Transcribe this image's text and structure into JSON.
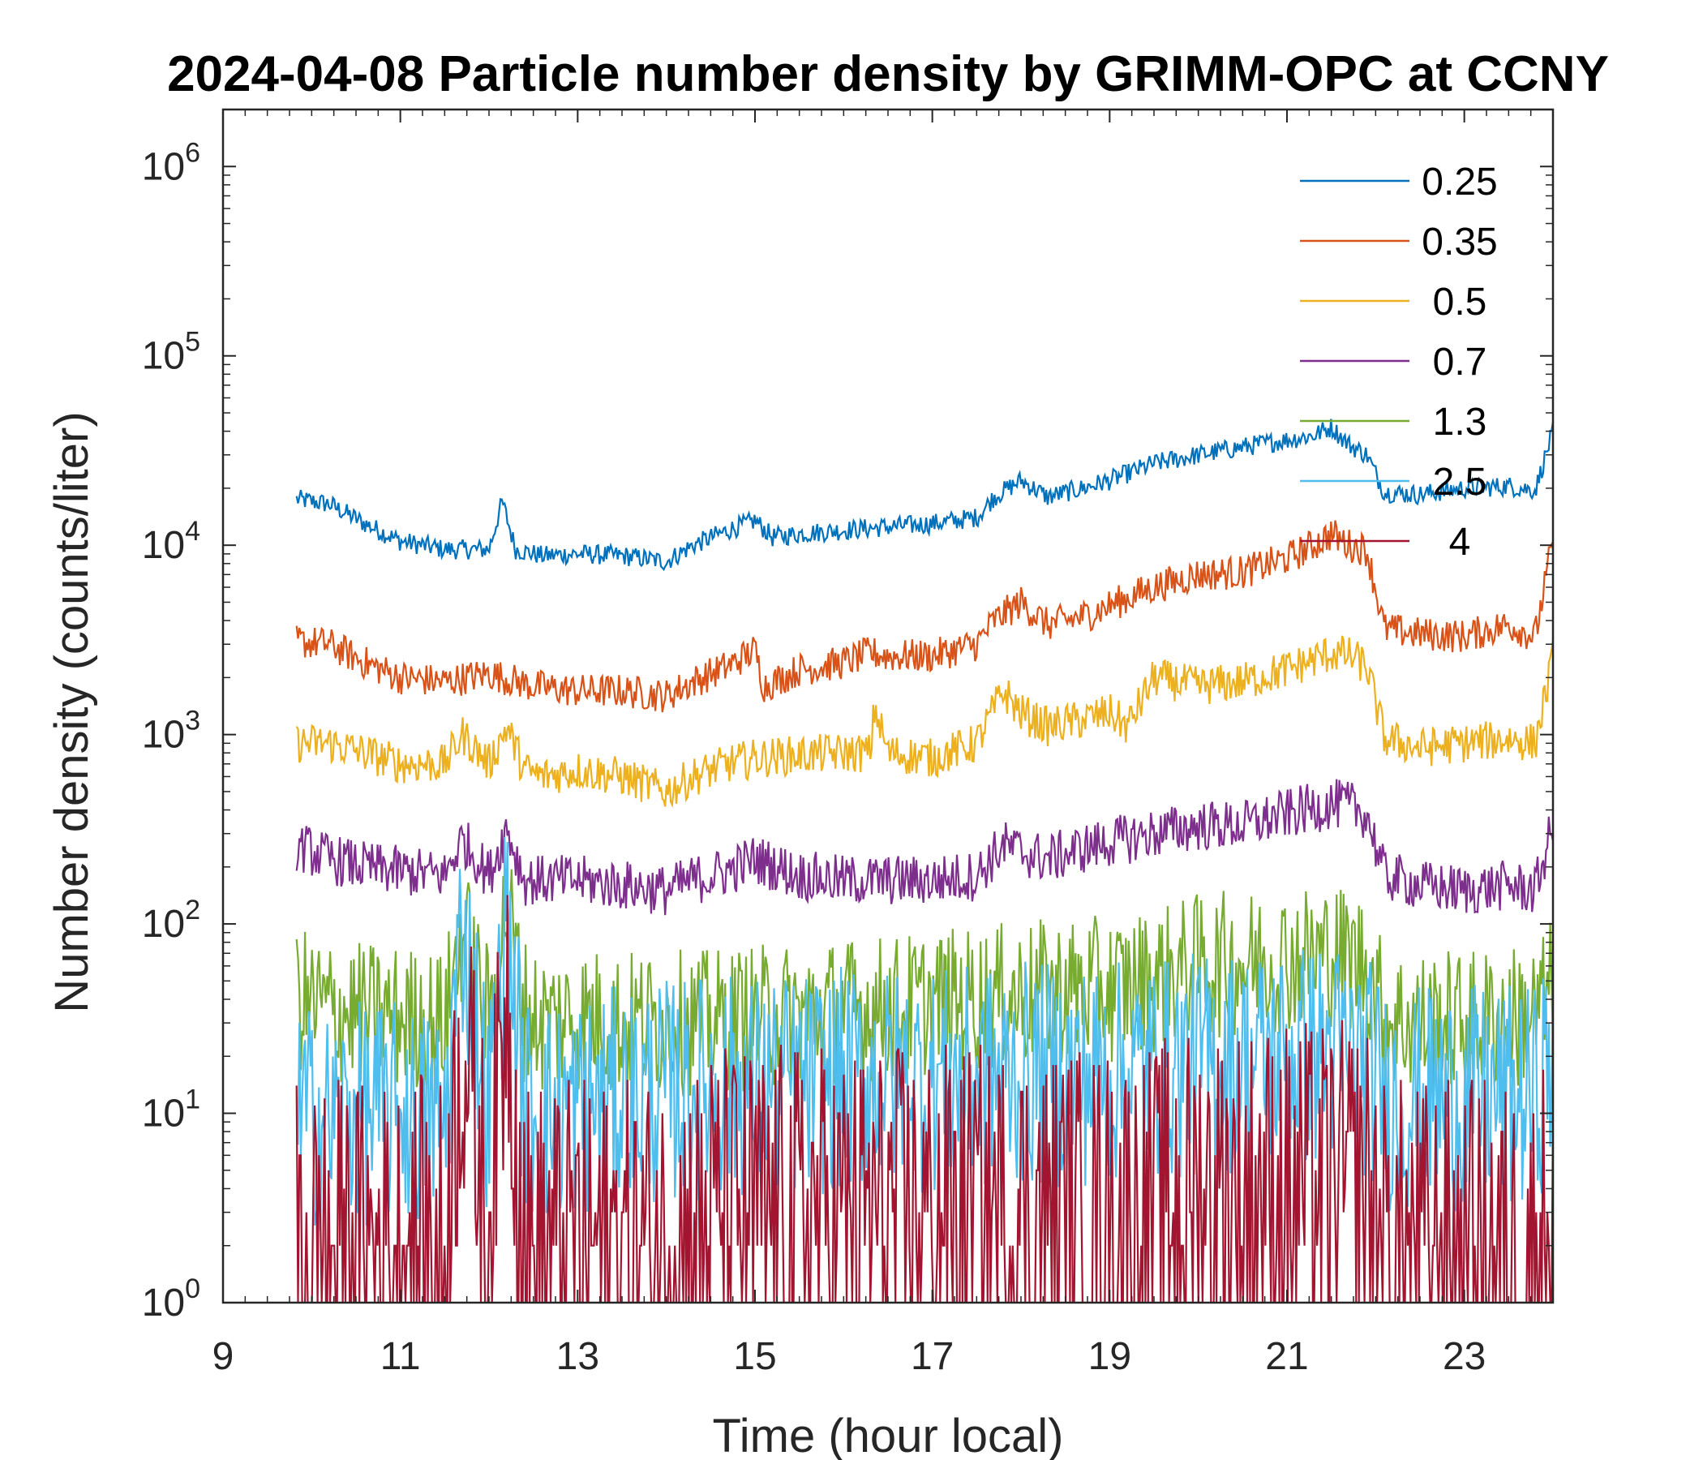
{
  "chart_data": {
    "type": "line",
    "title": "2024-04-08 Particle number density by GRIMM-OPC at CCNY",
    "xlabel": "Time (hour local)",
    "ylabel": "Number density (counts/liter)",
    "xlim": [
      9,
      24
    ],
    "ylim": [
      1,
      2000000
    ],
    "yscale": "log",
    "x_ticks": [
      9,
      11,
      13,
      15,
      17,
      19,
      21,
      23
    ],
    "x_tick_labels": [
      "9",
      "11",
      "13",
      "15",
      "17",
      "19",
      "21",
      "23"
    ],
    "y_ticks": [
      1,
      10,
      100,
      1000,
      10000,
      100000,
      1000000
    ],
    "y_tick_labels": [
      {
        "base": "10",
        "exp": "0"
      },
      {
        "base": "10",
        "exp": "1"
      },
      {
        "base": "10",
        "exp": "2"
      },
      {
        "base": "10",
        "exp": "3"
      },
      {
        "base": "10",
        "exp": "4"
      },
      {
        "base": "10",
        "exp": "5"
      },
      {
        "base": "10",
        "exp": "6"
      }
    ],
    "grid": false,
    "legend_position": "top-right",
    "series": [
      {
        "name": "0.25",
        "color": "#0072BD",
        "x": [
          9.83,
          10.2,
          10.6,
          11.0,
          11.5,
          12.0,
          12.15,
          12.3,
          12.6,
          13.0,
          13.5,
          14.0,
          14.3,
          14.7,
          15.0,
          15.2,
          15.5,
          16.0,
          16.5,
          17.0,
          17.5,
          17.7,
          18.0,
          18.3,
          18.7,
          19.0,
          19.5,
          20.0,
          20.5,
          21.0,
          21.3,
          21.5,
          21.7,
          21.9,
          22.1,
          22.5,
          23.0,
          23.5,
          23.8,
          24.0
        ],
        "values": [
          17500,
          16500,
          13000,
          10500,
          9500,
          9500,
          17000,
          9500,
          8800,
          9000,
          8800,
          8200,
          10000,
          12000,
          13500,
          11000,
          11500,
          12000,
          12500,
          13000,
          14000,
          18000,
          22000,
          18000,
          20000,
          22000,
          27000,
          30000,
          33000,
          36000,
          38000,
          42000,
          34000,
          30000,
          19000,
          18500,
          20000,
          20500,
          19500,
          40000
        ]
      },
      {
        "name": "0.35",
        "color": "#D95319",
        "x": [
          9.83,
          10.2,
          10.6,
          11.0,
          11.5,
          12.0,
          12.5,
          13.0,
          13.5,
          14.0,
          14.3,
          14.7,
          15.0,
          15.1,
          15.5,
          16.0,
          16.3,
          16.5,
          17.0,
          17.5,
          17.7,
          18.0,
          18.3,
          18.7,
          19.0,
          19.5,
          20.0,
          20.5,
          21.0,
          21.3,
          21.5,
          21.7,
          21.9,
          22.1,
          22.5,
          23.0,
          23.5,
          23.8,
          24.0
        ],
        "values": [
          3100,
          3000,
          2400,
          2000,
          1900,
          2100,
          1800,
          1700,
          1700,
          1600,
          1900,
          2300,
          2800,
          1800,
          2200,
          2400,
          2700,
          2600,
          2600,
          3000,
          4000,
          5000,
          3800,
          4200,
          4800,
          6000,
          7000,
          7200,
          8500,
          10000,
          11500,
          10000,
          9500,
          3600,
          3400,
          3300,
          3800,
          3300,
          10500
        ]
      },
      {
        "name": "0.5",
        "color": "#EDB120",
        "x": [
          9.83,
          10.2,
          10.6,
          11.0,
          11.5,
          11.7,
          12.0,
          12.2,
          12.4,
          12.6,
          13.0,
          13.5,
          14.0,
          14.3,
          14.7,
          15.0,
          15.5,
          16.0,
          16.3,
          16.35,
          16.5,
          17.0,
          17.5,
          17.8,
          18.0,
          18.3,
          18.7,
          19.0,
          19.2,
          19.5,
          20.0,
          20.5,
          21.0,
          21.5,
          21.7,
          21.9,
          22.1,
          22.5,
          23.0,
          23.5,
          23.8,
          24.0
        ],
        "values": [
          900,
          900,
          800,
          700,
          700,
          1000,
          700,
          1100,
          650,
          600,
          650,
          600,
          500,
          600,
          700,
          750,
          780,
          800,
          800,
          1400,
          800,
          750,
          900,
          1700,
          1300,
          1100,
          1200,
          1300,
          1100,
          2000,
          1800,
          1900,
          2200,
          2700,
          2600,
          2300,
          950,
          850,
          900,
          950,
          900,
          2500
        ]
      },
      {
        "name": "0.7",
        "color": "#7E2F8E",
        "x": [
          9.83,
          10.2,
          10.6,
          11.0,
          11.5,
          11.7,
          12.0,
          12.2,
          12.4,
          12.6,
          13.0,
          13.5,
          14.0,
          14.3,
          14.7,
          15.0,
          15.5,
          16.0,
          16.5,
          17.0,
          17.5,
          17.8,
          18.0,
          18.3,
          18.7,
          19.0,
          19.5,
          20.0,
          20.5,
          21.0,
          21.5,
          21.7,
          21.9,
          22.1,
          22.5,
          23.0,
          23.5,
          23.8,
          24.0
        ],
        "values": [
          260,
          220,
          200,
          190,
          180,
          280,
          180,
          320,
          170,
          170,
          170,
          160,
          150,
          170,
          190,
          220,
          180,
          170,
          170,
          170,
          180,
          260,
          240,
          220,
          250,
          270,
          300,
          330,
          330,
          380,
          430,
          420,
          380,
          180,
          160,
          150,
          160,
          150,
          330
        ]
      },
      {
        "name": "1.3",
        "color": "#77AC30",
        "x": [
          9.83,
          10.2,
          10.6,
          11.0,
          11.5,
          11.7,
          12.0,
          12.2,
          12.4,
          12.6,
          13.0,
          13.5,
          14.0,
          14.5,
          15.0,
          15.5,
          16.0,
          16.5,
          17.0,
          17.5,
          18.0,
          18.5,
          19.0,
          19.5,
          20.0,
          20.5,
          21.0,
          21.5,
          21.9,
          22.1,
          22.5,
          23.0,
          23.5,
          23.8,
          24.0
        ],
        "values": [
          40,
          35,
          33,
          32,
          30,
          95,
          30,
          130,
          35,
          30,
          32,
          30,
          30,
          30,
          32,
          33,
          35,
          36,
          38,
          40,
          42,
          45,
          45,
          50,
          60,
          62,
          65,
          70,
          60,
          32,
          30,
          30,
          32,
          33,
          45
        ]
      },
      {
        "name": "2.5",
        "color": "#4DBEEE",
        "x": [
          9.83,
          10.2,
          10.6,
          11.0,
          11.5,
          11.7,
          12.0,
          12.2,
          12.4,
          12.6,
          13.0,
          13.5,
          14.0,
          14.5,
          15.0,
          15.5,
          16.0,
          16.5,
          17.0,
          17.5,
          18.0,
          18.5,
          19.0,
          19.5,
          20.0,
          20.5,
          21.0,
          21.5,
          21.9,
          22.1,
          22.5,
          23.0,
          23.5,
          23.8,
          24.0
        ],
        "values": [
          10,
          9,
          10,
          10,
          9,
          100,
          10,
          110,
          11,
          10,
          11,
          12,
          13,
          14,
          14,
          14,
          15,
          15,
          15,
          15,
          16,
          16,
          16,
          17,
          18,
          19,
          20,
          21,
          18,
          12,
          12,
          12,
          12,
          12,
          22
        ]
      },
      {
        "name": "4",
        "color": "#A2142F",
        "x": [
          9.83,
          10.2,
          10.6,
          11.0,
          11.5,
          11.7,
          12.0,
          12.2,
          12.4,
          12.6,
          13.0,
          13.5,
          14.0,
          14.5,
          15.0,
          15.5,
          16.0,
          16.5,
          17.0,
          17.5,
          18.0,
          18.5,
          19.0,
          19.5,
          20.0,
          20.5,
          21.0,
          21.5,
          21.9,
          22.1,
          22.5,
          23.0,
          23.5,
          23.8,
          24.0
        ],
        "values": [
          2,
          2,
          2,
          2,
          2,
          25,
          2,
          50,
          2,
          2,
          2,
          2,
          2,
          3,
          3,
          3,
          3,
          3,
          3,
          3,
          3,
          3,
          3,
          3,
          4,
          4,
          4,
          4,
          4,
          2,
          2,
          2,
          2,
          2,
          4
        ]
      }
    ]
  }
}
